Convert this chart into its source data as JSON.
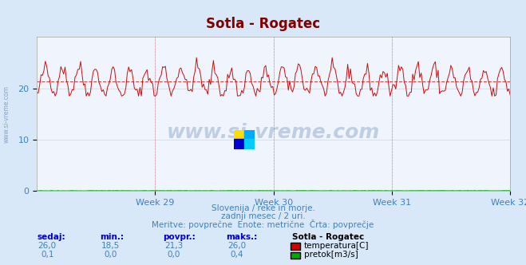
{
  "title": "Sotla - Rogatec",
  "title_color": "#800000",
  "title_fontsize": 12,
  "bg_color": "#d8e8f8",
  "plot_bg_color": "#f0f4fc",
  "grid_color": "#c8d8e8",
  "xlabel_weeks": [
    "Week 29",
    "Week 30",
    "Week 31",
    "Week 32"
  ],
  "ylim": [
    0,
    30
  ],
  "yticks": [
    0,
    10,
    20
  ],
  "xlim_days": 28,
  "avg_temp": 21.3,
  "min_temp": 18.5,
  "max_temp": 26.0,
  "current_temp": 26.0,
  "avg_flow": 0.0,
  "min_flow": 0.0,
  "max_flow": 0.4,
  "current_flow": 0.1,
  "temp_color": "#cc0000",
  "flow_color": "#00aa00",
  "avg_line_color": "#cc0000",
  "watermark_color": "#3060a0",
  "footer_line1": "Slovenija / reke in morje.",
  "footer_line2": "zadnji mesec / 2 uri.",
  "footer_line3": "Meritve: povprečne  Enote: metrične  Črta: povprečje",
  "footer_color": "#4080c0",
  "legend_title": "Sotla - Rogatec",
  "legend_title_color": "#000000",
  "stats_label_color": "#0000cc",
  "stats_value_color": "#4080c0",
  "stats_headers": [
    "sedaj:",
    "min.:",
    "povpr.:",
    "maks.:"
  ],
  "stats_values_temp": [
    "26,0",
    "18,5",
    "21,3",
    "26,0"
  ],
  "stats_values_flow": [
    "0,1",
    "0,0",
    "0,0",
    "0,4"
  ]
}
